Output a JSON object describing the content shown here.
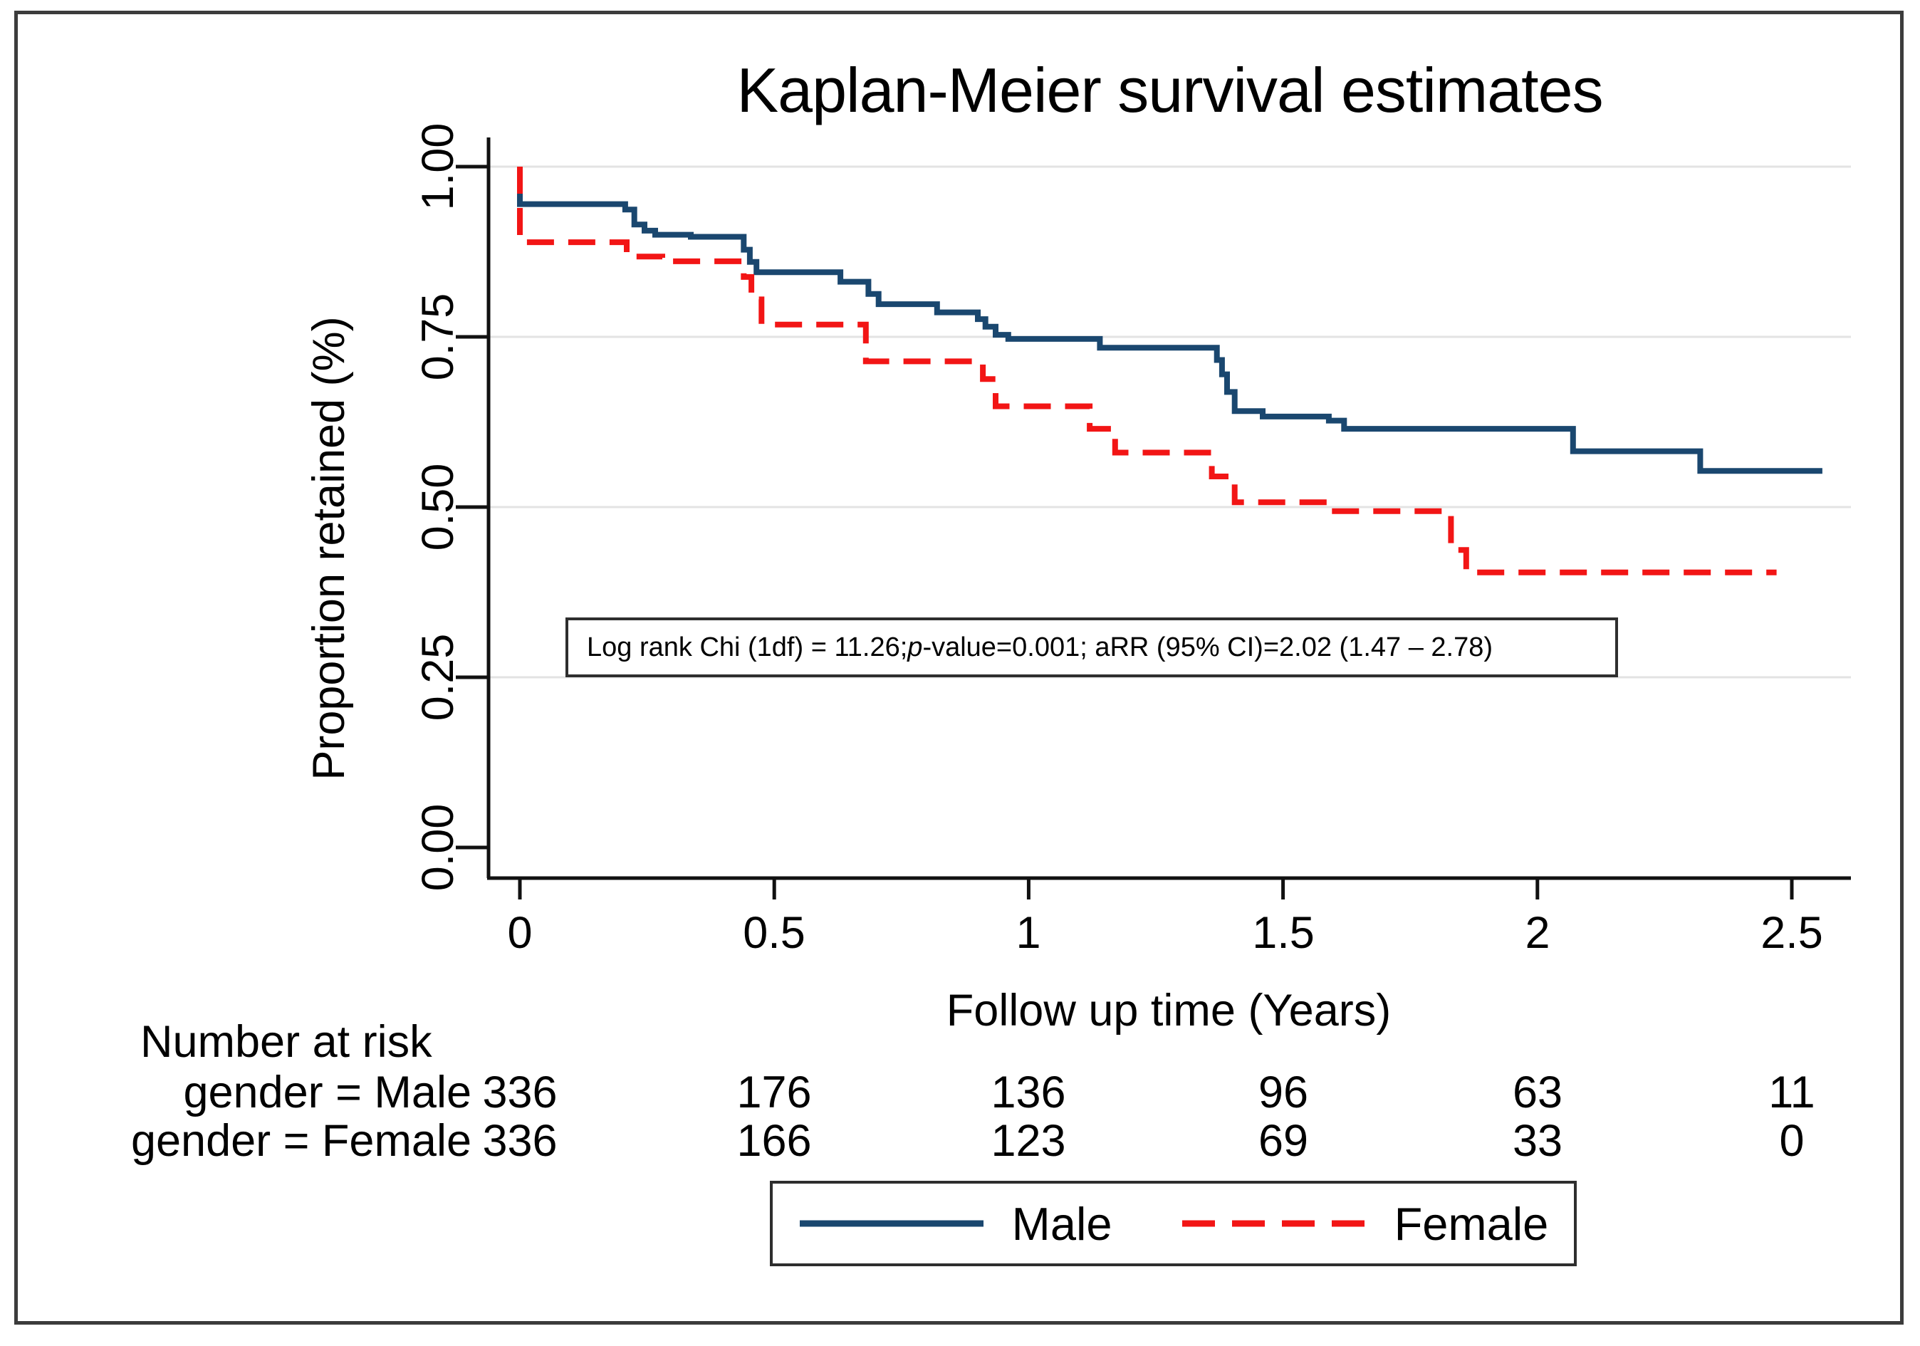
{
  "chart_data": {
    "type": "line",
    "subtype": "kaplan-meier-step",
    "title": "Kaplan-Meier survival estimates",
    "xlabel": "Follow up time (Years)",
    "ylabel": "Proportion retained (%)",
    "xlim": [
      0,
      2.62
    ],
    "ylim": [
      0,
      1.0
    ],
    "grid": "horizontal",
    "legend_position": "bottom-center",
    "xtick_labels": [
      "0",
      "0.5",
      "1",
      "1.5",
      "2",
      "2.5"
    ],
    "xtick_values": [
      0,
      0.5,
      1,
      1.5,
      2,
      2.5
    ],
    "ytick_labels": [
      "1.00",
      "0.75",
      "0.50",
      "0.25",
      "0.00"
    ],
    "ytick_values": [
      1.0,
      0.75,
      0.5,
      0.25,
      0.0
    ],
    "gridline_values": [
      1.0,
      0.75,
      0.5,
      0.25
    ],
    "colors": {
      "male": "#1a476f",
      "female": "#f21515",
      "grid": "#e3e3e3",
      "axis": "#111111"
    },
    "series": [
      {
        "name": "Male",
        "style": "solid",
        "color": "#1a476f",
        "points": [
          [
            0,
            1
          ],
          [
            0,
            0.945
          ],
          [
            0.207,
            0.945
          ],
          [
            0.207,
            0.937
          ],
          [
            0.225,
            0.937
          ],
          [
            0.225,
            0.915
          ],
          [
            0.245,
            0.915
          ],
          [
            0.245,
            0.906
          ],
          [
            0.266,
            0.906
          ],
          [
            0.266,
            0.9
          ],
          [
            0.336,
            0.9
          ],
          [
            0.336,
            0.897
          ],
          [
            0.44,
            0.897
          ],
          [
            0.44,
            0.878
          ],
          [
            0.452,
            0.878
          ],
          [
            0.452,
            0.86
          ],
          [
            0.465,
            0.86
          ],
          [
            0.465,
            0.845
          ],
          [
            0.63,
            0.845
          ],
          [
            0.63,
            0.831
          ],
          [
            0.685,
            0.831
          ],
          [
            0.685,
            0.813
          ],
          [
            0.705,
            0.813
          ],
          [
            0.705,
            0.798
          ],
          [
            0.82,
            0.798
          ],
          [
            0.82,
            0.786
          ],
          [
            0.9,
            0.786
          ],
          [
            0.9,
            0.776
          ],
          [
            0.915,
            0.776
          ],
          [
            0.915,
            0.765
          ],
          [
            0.935,
            0.765
          ],
          [
            0.935,
            0.753
          ],
          [
            0.96,
            0.753
          ],
          [
            0.96,
            0.747
          ],
          [
            1.14,
            0.747
          ],
          [
            1.14,
            0.734
          ],
          [
            1.37,
            0.734
          ],
          [
            1.37,
            0.716
          ],
          [
            1.38,
            0.716
          ],
          [
            1.38,
            0.695
          ],
          [
            1.39,
            0.695
          ],
          [
            1.39,
            0.669
          ],
          [
            1.405,
            0.669
          ],
          [
            1.405,
            0.641
          ],
          [
            1.46,
            0.641
          ],
          [
            1.46,
            0.633
          ],
          [
            1.59,
            0.633
          ],
          [
            1.59,
            0.627
          ],
          [
            1.62,
            0.627
          ],
          [
            1.62,
            0.615
          ],
          [
            2.07,
            0.615
          ],
          [
            2.07,
            0.582
          ],
          [
            2.32,
            0.582
          ],
          [
            2.32,
            0.553
          ],
          [
            2.56,
            0.553
          ]
        ]
      },
      {
        "name": "Female",
        "style": "dashed",
        "color": "#f21515",
        "points": [
          [
            0,
            1
          ],
          [
            0,
            0.889
          ],
          [
            0.21,
            0.889
          ],
          [
            0.21,
            0.868
          ],
          [
            0.28,
            0.868
          ],
          [
            0.28,
            0.861
          ],
          [
            0.44,
            0.861
          ],
          [
            0.44,
            0.838
          ],
          [
            0.455,
            0.838
          ],
          [
            0.455,
            0.805
          ],
          [
            0.475,
            0.805
          ],
          [
            0.475,
            0.768
          ],
          [
            0.68,
            0.768
          ],
          [
            0.68,
            0.714
          ],
          [
            0.91,
            0.714
          ],
          [
            0.91,
            0.688
          ],
          [
            0.935,
            0.688
          ],
          [
            0.935,
            0.648
          ],
          [
            1.12,
            0.648
          ],
          [
            1.12,
            0.615
          ],
          [
            1.17,
            0.615
          ],
          [
            1.17,
            0.58
          ],
          [
            1.36,
            0.58
          ],
          [
            1.36,
            0.545
          ],
          [
            1.405,
            0.545
          ],
          [
            1.405,
            0.507
          ],
          [
            1.58,
            0.507
          ],
          [
            1.58,
            0.494
          ],
          [
            1.83,
            0.494
          ],
          [
            1.83,
            0.437
          ],
          [
            1.86,
            0.437
          ],
          [
            1.86,
            0.404
          ],
          [
            2.47,
            0.404
          ]
        ]
      }
    ],
    "annotation": {
      "prefix": "Log rank Chi (1df) = 11.26;",
      "italic": "p",
      "suffix": "-value=0.001; aRR (95% CI)=2.02 (1.47 – 2.78)"
    },
    "risk_table": {
      "title": "Number at risk",
      "time_points": [
        "0",
        "0.5",
        "1",
        "1.5",
        "2",
        "2.5"
      ],
      "rows": [
        {
          "label": "gender = Male",
          "values": [
            "336",
            "176",
            "136",
            "96",
            "63",
            "11"
          ]
        },
        {
          "label": "gender = Female",
          "values": [
            "336",
            "166",
            "123",
            "69",
            "33",
            "0"
          ]
        }
      ]
    },
    "legend": {
      "entries": [
        {
          "label": "Male",
          "style": "solid"
        },
        {
          "label": "Female",
          "style": "dashed"
        }
      ]
    }
  }
}
